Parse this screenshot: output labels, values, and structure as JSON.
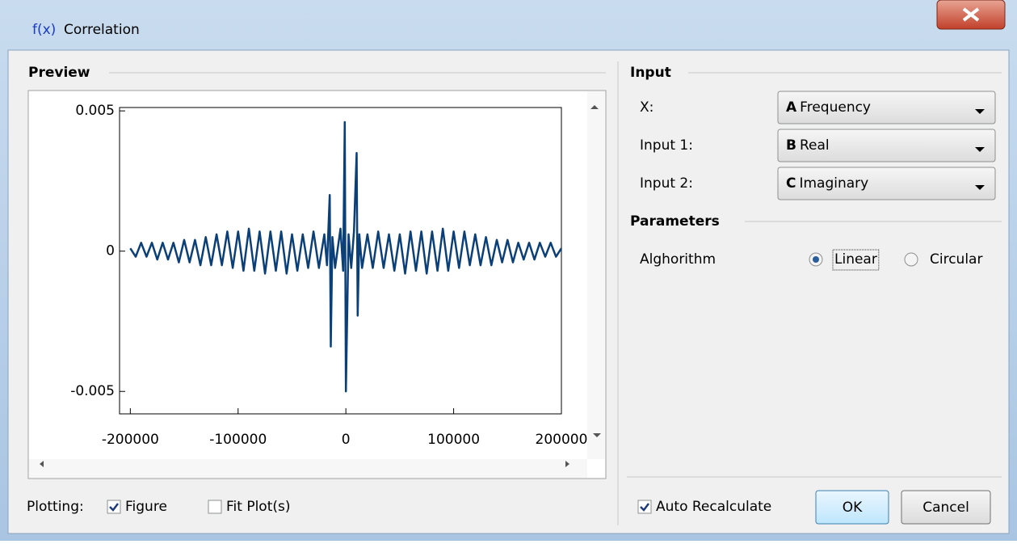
{
  "window": {
    "icon": "f(x)",
    "title": "Correlation"
  },
  "preview": {
    "title": "Preview",
    "plotting_label": "Plotting:",
    "figure": {
      "label": "Figure",
      "checked": true
    },
    "fit_plots": {
      "label": "Fit Plot(s)",
      "checked": false
    }
  },
  "chart_data": {
    "type": "line",
    "color": "#0b3f78",
    "xlim": [
      -210000,
      200000
    ],
    "ylim": [
      -0.0058,
      0.00512
    ],
    "xticks": [
      -200000,
      -100000,
      0,
      100000,
      200000
    ],
    "yticks": [
      0.005,
      0,
      -0.005
    ],
    "x": [
      -200000,
      -195000,
      -190000,
      -185000,
      -180000,
      -175000,
      -170000,
      -165000,
      -160000,
      -155000,
      -150000,
      -145000,
      -140000,
      -135000,
      -130000,
      -125000,
      -120000,
      -115000,
      -110000,
      -105000,
      -100000,
      -95000,
      -90000,
      -85000,
      -80000,
      -75000,
      -70000,
      -65000,
      -60000,
      -55000,
      -50000,
      -45000,
      -40000,
      -35000,
      -30000,
      -25000,
      -20000,
      -17500,
      -15000,
      -14000,
      -12500,
      -10000,
      -5000,
      -2500,
      -1000,
      0,
      2500,
      5000,
      7500,
      10000,
      11000,
      12500,
      15000,
      20000,
      25000,
      30000,
      35000,
      40000,
      45000,
      50000,
      55000,
      60000,
      65000,
      70000,
      75000,
      80000,
      85000,
      90000,
      95000,
      100000,
      105000,
      110000,
      115000,
      120000,
      125000,
      130000,
      135000,
      140000,
      145000,
      150000,
      155000,
      160000,
      165000,
      170000,
      175000,
      180000,
      185000,
      190000,
      195000,
      200000
    ],
    "series": [
      {
        "values": [
          0.0001,
          -0.0002,
          0.0003,
          -0.0002,
          0.0003,
          -0.0003,
          0.0003,
          -0.0003,
          0.0003,
          -0.0004,
          0.0004,
          -0.0004,
          0.0004,
          -0.0005,
          0.0005,
          -0.0005,
          0.0006,
          -0.0005,
          0.0007,
          -0.0006,
          0.0007,
          -0.0007,
          0.0008,
          -0.0007,
          0.0007,
          -0.0008,
          0.0007,
          -0.0007,
          0.0007,
          -0.0008,
          0.0006,
          -0.0007,
          0.0006,
          -0.0006,
          0.0007,
          -0.0006,
          0.0006,
          -0.0005,
          0.002,
          -0.0034,
          0.0005,
          -0.0006,
          0.0008,
          -0.0007,
          0.0046,
          -0.005,
          0.0006,
          -0.0006,
          0.0007,
          0.0035,
          -0.0023,
          0.0006,
          -0.0006,
          0.0006,
          -0.0006,
          0.0007,
          -0.0006,
          0.0006,
          -0.0007,
          0.0006,
          -0.0008,
          0.0007,
          -0.0007,
          0.0007,
          -0.0008,
          0.0007,
          -0.0007,
          0.0008,
          -0.0007,
          0.0007,
          -0.0006,
          0.0007,
          -0.0005,
          0.0006,
          -0.0005,
          0.0005,
          -0.0005,
          0.0004,
          -0.0004,
          0.0004,
          -0.0004,
          0.0003,
          -0.0003,
          0.0003,
          -0.0003,
          0.0003,
          -0.0002,
          0.0003,
          -0.0002,
          0.0001
        ]
      }
    ]
  },
  "input": {
    "title": "Input",
    "fields": [
      {
        "label": "X:",
        "column": "A",
        "value": "Frequency"
      },
      {
        "label": "Input 1:",
        "column": "B",
        "value": "Real"
      },
      {
        "label": "Input 2:",
        "column": "C",
        "value": "Imaginary"
      }
    ]
  },
  "parameters": {
    "title": "Parameters",
    "algorithm_label": "Alghorithm",
    "options": [
      "Linear",
      "Circular"
    ],
    "selected": 0
  },
  "footer": {
    "auto_recalculate": {
      "label": "Auto Recalculate",
      "checked": true
    },
    "ok": "OK",
    "cancel": "Cancel"
  }
}
